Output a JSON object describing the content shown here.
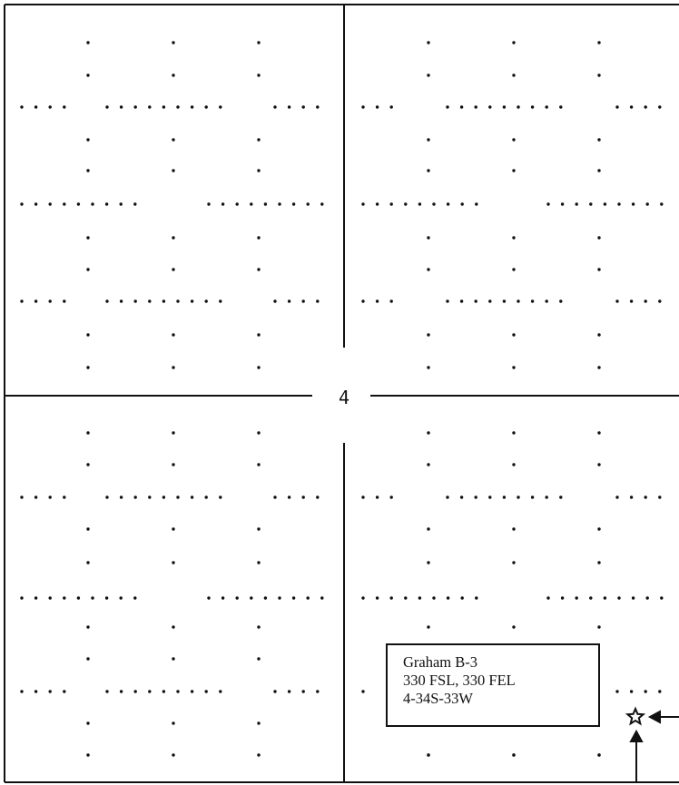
{
  "section_number": "4",
  "label": {
    "name": "Graham B-3",
    "footage": "330 FSL, 330 FEL",
    "location": "4-34S-33W"
  },
  "icons": {
    "well": "star-icon"
  }
}
